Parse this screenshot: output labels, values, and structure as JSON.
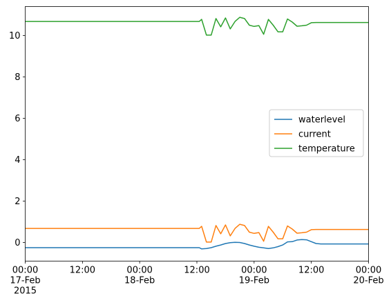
{
  "chart_data": {
    "type": "line",
    "title": "",
    "xlabel": "",
    "ylabel": "",
    "grid": false,
    "legend_position": "center-right",
    "xlim": [
      "2015-02-17 00:00",
      "2015-02-20 00:00"
    ],
    "ylim": [
      -0.9,
      11.4
    ],
    "y_ticks": [
      0,
      2,
      4,
      6,
      8,
      10
    ],
    "y_tick_labels": [
      "0",
      "2",
      "4",
      "6",
      "8",
      "10"
    ],
    "x_ticks": [
      {
        "x": "2015-02-17 00:00",
        "label": "00:00\n17-Feb\n2015"
      },
      {
        "x": "2015-02-17 12:00",
        "label": "12:00"
      },
      {
        "x": "2015-02-18 00:00",
        "label": "00:00\n18-Feb"
      },
      {
        "x": "2015-02-18 12:00",
        "label": "12:00"
      },
      {
        "x": "2015-02-19 00:00",
        "label": "00:00\n19-Feb"
      },
      {
        "x": "2015-02-19 12:00",
        "label": "12:00"
      },
      {
        "x": "2015-02-20 00:00",
        "label": "00:00\n20-Feb"
      }
    ],
    "series": [
      {
        "name": "waterlevel",
        "color": "#1f77b4",
        "points": [
          [
            "2015-02-17 00:00",
            -0.25
          ],
          [
            "2015-02-18 12:30",
            -0.25
          ],
          [
            "2015-02-18 13:00",
            -0.31
          ],
          [
            "2015-02-18 14:00",
            -0.29
          ],
          [
            "2015-02-18 15:00",
            -0.25
          ],
          [
            "2015-02-18 16:00",
            -0.18
          ],
          [
            "2015-02-18 17:00",
            -0.12
          ],
          [
            "2015-02-18 18:00",
            -0.05
          ],
          [
            "2015-02-18 19:00",
            -0.01
          ],
          [
            "2015-02-18 20:00",
            0.01
          ],
          [
            "2015-02-18 21:00",
            0.0
          ],
          [
            "2015-02-18 22:00",
            -0.05
          ],
          [
            "2015-02-18 23:00",
            -0.12
          ],
          [
            "2015-02-19 00:00",
            -0.18
          ],
          [
            "2015-02-19 01:00",
            -0.23
          ],
          [
            "2015-02-19 02:00",
            -0.26
          ],
          [
            "2015-02-19 03:00",
            -0.29
          ],
          [
            "2015-02-19 04:00",
            -0.26
          ],
          [
            "2015-02-19 05:00",
            -0.2
          ],
          [
            "2015-02-19 06:00",
            -0.12
          ],
          [
            "2015-02-19 07:00",
            0.03
          ],
          [
            "2015-02-19 08:00",
            0.04
          ],
          [
            "2015-02-19 09:00",
            0.12
          ],
          [
            "2015-02-19 10:00",
            0.14
          ],
          [
            "2015-02-19 11:00",
            0.13
          ],
          [
            "2015-02-19 12:00",
            0.04
          ],
          [
            "2015-02-19 13:00",
            -0.05
          ],
          [
            "2015-02-19 14:00",
            -0.07
          ],
          [
            "2015-02-20 00:00",
            -0.07
          ]
        ]
      },
      {
        "name": "current",
        "color": "#ff7f0e",
        "points": [
          [
            "2015-02-17 00:00",
            0.68
          ],
          [
            "2015-02-18 12:30",
            0.68
          ],
          [
            "2015-02-18 13:00",
            0.78
          ],
          [
            "2015-02-18 14:00",
            0.02
          ],
          [
            "2015-02-18 15:00",
            0.02
          ],
          [
            "2015-02-18 16:00",
            0.82
          ],
          [
            "2015-02-18 17:00",
            0.42
          ],
          [
            "2015-02-18 18:00",
            0.85
          ],
          [
            "2015-02-18 19:00",
            0.32
          ],
          [
            "2015-02-18 20:00",
            0.68
          ],
          [
            "2015-02-18 21:00",
            0.88
          ],
          [
            "2015-02-18 22:00",
            0.82
          ],
          [
            "2015-02-18 23:00",
            0.5
          ],
          [
            "2015-02-19 00:00",
            0.44
          ],
          [
            "2015-02-19 01:00",
            0.48
          ],
          [
            "2015-02-19 02:00",
            0.06
          ],
          [
            "2015-02-19 03:00",
            0.78
          ],
          [
            "2015-02-19 04:00",
            0.5
          ],
          [
            "2015-02-19 05:00",
            0.18
          ],
          [
            "2015-02-19 06:00",
            0.18
          ],
          [
            "2015-02-19 07:00",
            0.8
          ],
          [
            "2015-02-19 08:00",
            0.65
          ],
          [
            "2015-02-19 09:00",
            0.45
          ],
          [
            "2015-02-19 10:00",
            0.47
          ],
          [
            "2015-02-19 11:00",
            0.5
          ],
          [
            "2015-02-19 12:00",
            0.62
          ],
          [
            "2015-02-19 13:00",
            0.63
          ],
          [
            "2015-02-20 00:00",
            0.63
          ]
        ]
      },
      {
        "name": "temperature",
        "color": "#2ca02c",
        "points": [
          [
            "2015-02-17 00:00",
            10.68
          ],
          [
            "2015-02-18 12:30",
            10.68
          ],
          [
            "2015-02-18 13:00",
            10.78
          ],
          [
            "2015-02-18 14:00",
            10.02
          ],
          [
            "2015-02-18 15:00",
            10.02
          ],
          [
            "2015-02-18 16:00",
            10.82
          ],
          [
            "2015-02-18 17:00",
            10.42
          ],
          [
            "2015-02-18 18:00",
            10.85
          ],
          [
            "2015-02-18 19:00",
            10.32
          ],
          [
            "2015-02-18 20:00",
            10.68
          ],
          [
            "2015-02-18 21:00",
            10.88
          ],
          [
            "2015-02-18 22:00",
            10.82
          ],
          [
            "2015-02-18 23:00",
            10.5
          ],
          [
            "2015-02-19 00:00",
            10.44
          ],
          [
            "2015-02-19 01:00",
            10.48
          ],
          [
            "2015-02-19 02:00",
            10.06
          ],
          [
            "2015-02-19 03:00",
            10.78
          ],
          [
            "2015-02-19 04:00",
            10.5
          ],
          [
            "2015-02-19 05:00",
            10.18
          ],
          [
            "2015-02-19 06:00",
            10.18
          ],
          [
            "2015-02-19 07:00",
            10.8
          ],
          [
            "2015-02-19 08:00",
            10.65
          ],
          [
            "2015-02-19 09:00",
            10.45
          ],
          [
            "2015-02-19 10:00",
            10.47
          ],
          [
            "2015-02-19 11:00",
            10.5
          ],
          [
            "2015-02-19 12:00",
            10.62
          ],
          [
            "2015-02-19 13:00",
            10.63
          ],
          [
            "2015-02-20 00:00",
            10.63
          ]
        ]
      }
    ]
  }
}
